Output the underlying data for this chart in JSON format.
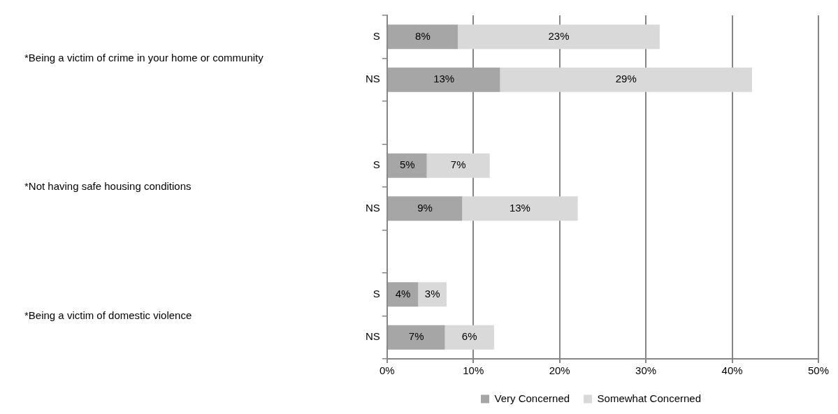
{
  "chart_data": {
    "type": "bar",
    "orientation": "horizontal",
    "stacked": true,
    "categories": [
      "S",
      "NS",
      null,
      "S",
      "NS",
      null,
      "S",
      "NS"
    ],
    "series": [
      {
        "name": "Very Concerned",
        "color": "#a6a6a6",
        "values": [
          8.2,
          13.1,
          null,
          4.6,
          8.7,
          null,
          3.6,
          6.7
        ],
        "value_labels": [
          "8%",
          "13%",
          null,
          "5%",
          "9%",
          null,
          "4%",
          "7%"
        ]
      },
      {
        "name": "Somewhat Concerned",
        "color": "#d9d9d9",
        "values": [
          23.4,
          29.2,
          null,
          7.3,
          13.4,
          null,
          3.3,
          5.7
        ],
        "value_labels": [
          "23%",
          "29%",
          null,
          "7%",
          "13%",
          null,
          "3%",
          "6%"
        ]
      }
    ],
    "xlim": [
      0,
      50
    ],
    "xticks": [
      {
        "value": 0,
        "label": "0%"
      },
      {
        "value": 10,
        "label": "10%"
      },
      {
        "value": 20,
        "label": "20%"
      },
      {
        "value": 30,
        "label": "30%"
      },
      {
        "value": 40,
        "label": "40%"
      },
      {
        "value": 50,
        "label": "50%"
      }
    ],
    "annotations": [
      "*Being a victim of crime in your home or community",
      "*Not having safe housing conditions",
      "*Being a victim of domestic violence"
    ],
    "grid": "x",
    "legend": "bottom"
  }
}
